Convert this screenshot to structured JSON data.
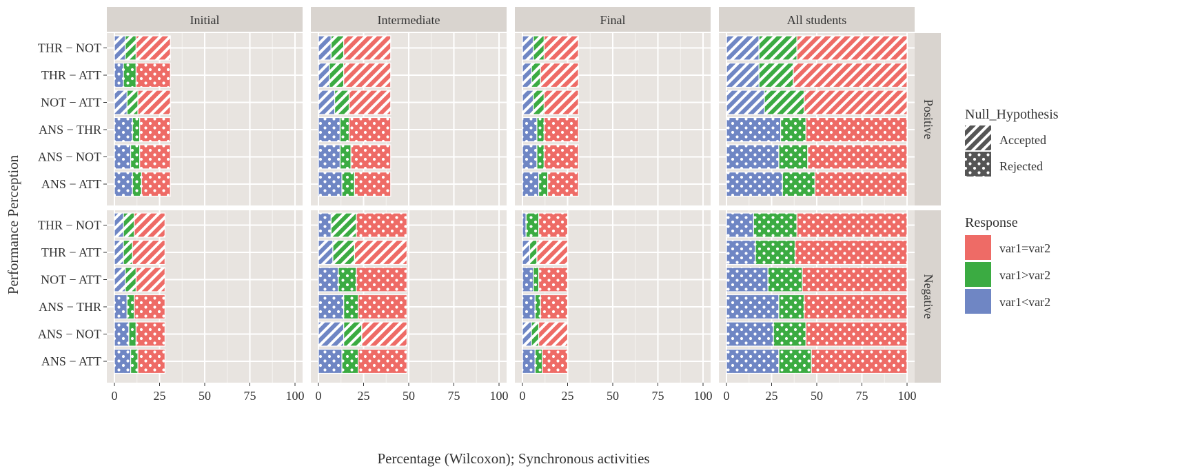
{
  "chart_data": {
    "type": "bar",
    "orientation": "horizontal",
    "stacked": true,
    "xlabel": "Percentage (Wilcoxon); Synchronous activities",
    "ylabel": "Performance Perception",
    "xlim": [
      0,
      100
    ],
    "x_ticks": [
      0,
      25,
      50,
      75,
      100
    ],
    "grid": true,
    "legend_placement": "right",
    "columns": [
      "Initial",
      "Intermediate",
      "Final",
      "All students"
    ],
    "rows": [
      "Positive",
      "Negative"
    ],
    "categories": [
      "THR − NOT",
      "THR − ATT",
      "NOT − ATT",
      "ANS − THR",
      "ANS − NOT",
      "ANS − ATT"
    ],
    "response_order": [
      "var1<var2",
      "var1>var2",
      "var1=var2"
    ],
    "legends": {
      "null_hypothesis": {
        "title": "Null_Hypothesis",
        "entries": [
          {
            "label": "Accepted",
            "pattern": "stripe"
          },
          {
            "label": "Rejected",
            "pattern": "dots"
          }
        ]
      },
      "response": {
        "title": "Response",
        "entries": [
          {
            "label": "var1=var2",
            "color": "#ee6b66"
          },
          {
            "label": "var1>var2",
            "color": "#3bab42"
          },
          {
            "label": "var1<var2",
            "color": "#6f86c4"
          }
        ]
      }
    },
    "panels": [
      {
        "column": "Initial",
        "row": "Positive",
        "bars": [
          {
            "category": "THR − NOT",
            "values": [
              6,
              6,
              19
            ],
            "null_hypothesis": [
              "Accepted",
              "Accepted",
              "Accepted"
            ]
          },
          {
            "category": "THR − ATT",
            "values": [
              5,
              7,
              19
            ],
            "null_hypothesis": [
              "Rejected",
              "Rejected",
              "Rejected"
            ]
          },
          {
            "category": "NOT − ATT",
            "values": [
              7,
              6,
              18
            ],
            "null_hypothesis": [
              "Accepted",
              "Accepted",
              "Accepted"
            ]
          },
          {
            "category": "ANS − THR",
            "values": [
              10,
              4,
              17
            ],
            "null_hypothesis": [
              "Rejected",
              "Rejected",
              "Rejected"
            ]
          },
          {
            "category": "ANS − NOT",
            "values": [
              9,
              5,
              17
            ],
            "null_hypothesis": [
              "Rejected",
              "Rejected",
              "Rejected"
            ]
          },
          {
            "category": "ANS − ATT",
            "values": [
              10,
              5,
              16
            ],
            "null_hypothesis": [
              "Rejected",
              "Rejected",
              "Rejected"
            ]
          }
        ]
      },
      {
        "column": "Intermediate",
        "row": "Positive",
        "bars": [
          {
            "category": "THR − NOT",
            "values": [
              7,
              7,
              26
            ],
            "null_hypothesis": [
              "Accepted",
              "Accepted",
              "Accepted"
            ]
          },
          {
            "category": "THR − ATT",
            "values": [
              6,
              8,
              26
            ],
            "null_hypothesis": [
              "Accepted",
              "Accepted",
              "Accepted"
            ]
          },
          {
            "category": "NOT − ATT",
            "values": [
              9,
              8,
              23
            ],
            "null_hypothesis": [
              "Accepted",
              "Accepted",
              "Accepted"
            ]
          },
          {
            "category": "ANS − THR",
            "values": [
              12,
              5,
              23
            ],
            "null_hypothesis": [
              "Rejected",
              "Rejected",
              "Rejected"
            ]
          },
          {
            "category": "ANS − NOT",
            "values": [
              12,
              6,
              22
            ],
            "null_hypothesis": [
              "Rejected",
              "Rejected",
              "Rejected"
            ]
          },
          {
            "category": "ANS − ATT",
            "values": [
              13,
              7,
              20
            ],
            "null_hypothesis": [
              "Rejected",
              "Rejected",
              "Rejected"
            ]
          }
        ]
      },
      {
        "column": "Final",
        "row": "Positive",
        "bars": [
          {
            "category": "THR − NOT",
            "values": [
              6,
              6,
              19
            ],
            "null_hypothesis": [
              "Accepted",
              "Accepted",
              "Accepted"
            ]
          },
          {
            "category": "THR − ATT",
            "values": [
              5,
              5,
              21
            ],
            "null_hypothesis": [
              "Accepted",
              "Accepted",
              "Accepted"
            ]
          },
          {
            "category": "NOT − ATT",
            "values": [
              6,
              6,
              19
            ],
            "null_hypothesis": [
              "Accepted",
              "Accepted",
              "Accepted"
            ]
          },
          {
            "category": "ANS − THR",
            "values": [
              8,
              4,
              19
            ],
            "null_hypothesis": [
              "Rejected",
              "Rejected",
              "Rejected"
            ]
          },
          {
            "category": "ANS − NOT",
            "values": [
              8,
              4,
              19
            ],
            "null_hypothesis": [
              "Rejected",
              "Rejected",
              "Rejected"
            ]
          },
          {
            "category": "ANS − ATT",
            "values": [
              9,
              5,
              17
            ],
            "null_hypothesis": [
              "Rejected",
              "Rejected",
              "Rejected"
            ]
          }
        ]
      },
      {
        "column": "All students",
        "row": "Positive",
        "bars": [
          {
            "category": "THR − NOT",
            "values": [
              18,
              21,
              61
            ],
            "null_hypothesis": [
              "Accepted",
              "Accepted",
              "Accepted"
            ]
          },
          {
            "category": "THR − ATT",
            "values": [
              18,
              19,
              63
            ],
            "null_hypothesis": [
              "Accepted",
              "Accepted",
              "Accepted"
            ]
          },
          {
            "category": "NOT − ATT",
            "values": [
              21,
              22,
              57
            ],
            "null_hypothesis": [
              "Accepted",
              "Accepted",
              "Accepted"
            ]
          },
          {
            "category": "ANS − THR",
            "values": [
              30,
              14,
              56
            ],
            "null_hypothesis": [
              "Rejected",
              "Rejected",
              "Rejected"
            ]
          },
          {
            "category": "ANS − NOT",
            "values": [
              29,
              16,
              55
            ],
            "null_hypothesis": [
              "Rejected",
              "Rejected",
              "Rejected"
            ]
          },
          {
            "category": "ANS − ATT",
            "values": [
              31,
              18,
              51
            ],
            "null_hypothesis": [
              "Rejected",
              "Rejected",
              "Rejected"
            ]
          }
        ]
      },
      {
        "column": "Initial",
        "row": "Negative",
        "bars": [
          {
            "category": "THR − NOT",
            "values": [
              5,
              6,
              17
            ],
            "null_hypothesis": [
              "Accepted",
              "Accepted",
              "Accepted"
            ]
          },
          {
            "category": "THR − ATT",
            "values": [
              5,
              5,
              18
            ],
            "null_hypothesis": [
              "Accepted",
              "Accepted",
              "Accepted"
            ]
          },
          {
            "category": "NOT − ATT",
            "values": [
              6,
              6,
              16
            ],
            "null_hypothesis": [
              "Accepted",
              "Accepted",
              "Accepted"
            ]
          },
          {
            "category": "ANS − THR",
            "values": [
              7,
              4,
              17
            ],
            "null_hypothesis": [
              "Rejected",
              "Rejected",
              "Rejected"
            ]
          },
          {
            "category": "ANS − NOT",
            "values": [
              8,
              4,
              16
            ],
            "null_hypothesis": [
              "Rejected",
              "Rejected",
              "Rejected"
            ]
          },
          {
            "category": "ANS − ATT",
            "values": [
              9,
              4,
              15
            ],
            "null_hypothesis": [
              "Rejected",
              "Rejected",
              "Rejected"
            ]
          }
        ]
      },
      {
        "column": "Intermediate",
        "row": "Negative",
        "bars": [
          {
            "category": "THR − NOT",
            "values": [
              7,
              14,
              28
            ],
            "null_hypothesis": [
              "Rejected",
              "Accepted",
              "Rejected"
            ]
          },
          {
            "category": "THR − ATT",
            "values": [
              8,
              12,
              29
            ],
            "null_hypothesis": [
              "Accepted",
              "Accepted",
              "Accepted"
            ]
          },
          {
            "category": "NOT − ATT",
            "values": [
              11,
              10,
              28
            ],
            "null_hypothesis": [
              "Rejected",
              "Rejected",
              "Rejected"
            ]
          },
          {
            "category": "ANS − THR",
            "values": [
              14,
              8,
              27
            ],
            "null_hypothesis": [
              "Rejected",
              "Rejected",
              "Rejected"
            ]
          },
          {
            "category": "ANS − NOT",
            "values": [
              14,
              10,
              25
            ],
            "null_hypothesis": [
              "Accepted",
              "Accepted",
              "Accepted"
            ]
          },
          {
            "category": "ANS − ATT",
            "values": [
              13,
              9,
              27
            ],
            "null_hypothesis": [
              "Rejected",
              "Rejected",
              "Rejected"
            ]
          }
        ]
      },
      {
        "column": "Final",
        "row": "Negative",
        "bars": [
          {
            "category": "THR − NOT",
            "values": [
              2,
              7,
              16
            ],
            "null_hypothesis": [
              "Rejected",
              "Rejected",
              "Rejected"
            ]
          },
          {
            "category": "THR − ATT",
            "values": [
              4,
              4,
              17
            ],
            "null_hypothesis": [
              "Accepted",
              "Accepted",
              "Accepted"
            ]
          },
          {
            "category": "NOT − ATT",
            "values": [
              6,
              3,
              16
            ],
            "null_hypothesis": [
              "Rejected",
              "Rejected",
              "Rejected"
            ]
          },
          {
            "category": "ANS − THR",
            "values": [
              7,
              3,
              15
            ],
            "null_hypothesis": [
              "Rejected",
              "Rejected",
              "Rejected"
            ]
          },
          {
            "category": "ANS − NOT",
            "values": [
              5,
              4,
              16
            ],
            "null_hypothesis": [
              "Accepted",
              "Accepted",
              "Accepted"
            ]
          },
          {
            "category": "ANS − ATT",
            "values": [
              7,
              4,
              14
            ],
            "null_hypothesis": [
              "Rejected",
              "Rejected",
              "Rejected"
            ]
          }
        ]
      },
      {
        "column": "All students",
        "row": "Negative",
        "bars": [
          {
            "category": "THR − NOT",
            "values": [
              15,
              24,
              61
            ],
            "null_hypothesis": [
              "Rejected",
              "Rejected",
              "Rejected"
            ]
          },
          {
            "category": "THR − ATT",
            "values": [
              16,
              22,
              62
            ],
            "null_hypothesis": [
              "Rejected",
              "Rejected",
              "Rejected"
            ]
          },
          {
            "category": "NOT − ATT",
            "values": [
              23,
              19,
              58
            ],
            "null_hypothesis": [
              "Rejected",
              "Rejected",
              "Rejected"
            ]
          },
          {
            "category": "ANS − THR",
            "values": [
              29,
              14,
              57
            ],
            "null_hypothesis": [
              "Rejected",
              "Rejected",
              "Rejected"
            ]
          },
          {
            "category": "ANS − NOT",
            "values": [
              26,
              18,
              56
            ],
            "null_hypothesis": [
              "Rejected",
              "Rejected",
              "Rejected"
            ]
          },
          {
            "category": "ANS − ATT",
            "values": [
              29,
              18,
              53
            ],
            "null_hypothesis": [
              "Rejected",
              "Rejected",
              "Rejected"
            ]
          }
        ]
      }
    ]
  }
}
